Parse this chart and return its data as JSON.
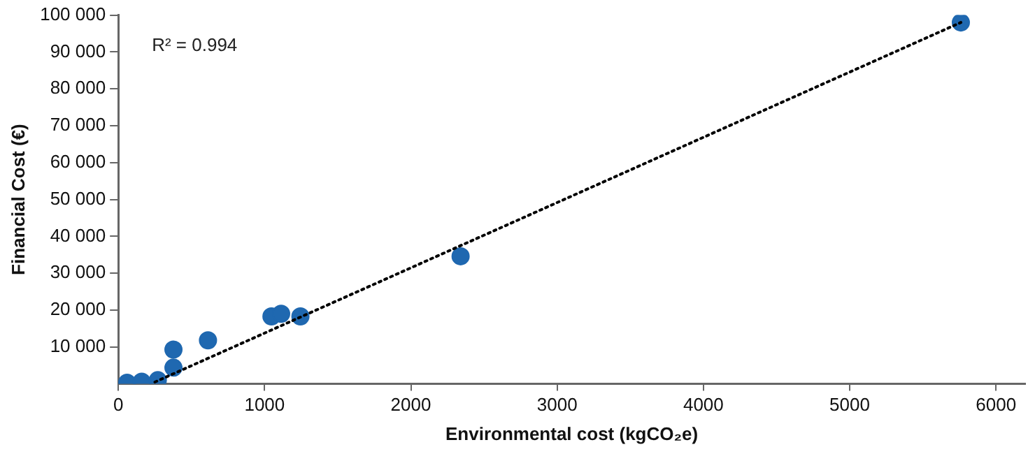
{
  "chart_data": {
    "type": "scatter",
    "xlabel": "Environmental cost (kgCO₂e)",
    "ylabel": "Financial Cost (€)",
    "annotations": [
      "R² = 0.994"
    ],
    "xlim": [
      0,
      6200
    ],
    "xticks": [
      0,
      1000,
      2000,
      3000,
      4000,
      5000,
      6000
    ],
    "ylim": [
      0,
      100000
    ],
    "yticks": [
      {
        "value": 10000,
        "label": "10 000"
      },
      {
        "value": 20000,
        "label": "20 000"
      },
      {
        "value": 30000,
        "label": "30 000"
      },
      {
        "value": 40000,
        "label": "40 000"
      },
      {
        "value": 50000,
        "label": "50 000"
      },
      {
        "value": 60000,
        "label": "60 000"
      },
      {
        "value": 70000,
        "label": "70 000"
      },
      {
        "value": 80000,
        "label": "80 000"
      },
      {
        "value": 90000,
        "label": "90 000"
      },
      {
        "value": 100000,
        "label": "100 000"
      }
    ],
    "grid": false,
    "legend": false,
    "series": [
      {
        "color": "#1f68b0",
        "marker": "circle",
        "x": [
          60,
          160,
          270,
          377,
          377,
          613,
          1047,
          1113,
          1245,
          2340,
          5760
        ],
        "values": [
          300,
          600,
          1000,
          4400,
          9300,
          11800,
          18300,
          19000,
          18300,
          34600,
          98000
        ]
      },
      {
        "type": "line",
        "color": "#000000",
        "marker": "none",
        "line_style": "dotted",
        "x": [
          250,
          5760
        ],
        "values": [
          500,
          98000
        ]
      }
    ]
  }
}
